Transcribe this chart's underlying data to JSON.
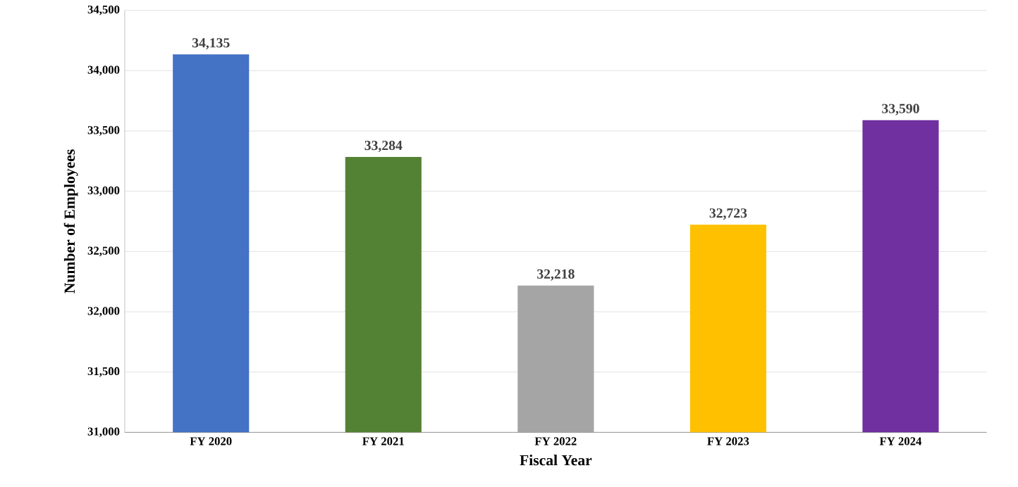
{
  "chart_data": {
    "type": "bar",
    "xlabel": "Fiscal Year",
    "ylabel": "Number of Employees",
    "categories": [
      "FY 2020",
      "FY 2021",
      "FY 2022",
      "FY 2023",
      "FY 2024"
    ],
    "values": [
      34135,
      33284,
      32218,
      32723,
      33590
    ],
    "colors": [
      "#4472c4",
      "#548235",
      "#a5a5a5",
      "#ffc000",
      "#7030a0"
    ],
    "value_labels": [
      "34,135",
      "33,284",
      "32,218",
      "32,723",
      "33,590"
    ],
    "ylim": [
      31000,
      34500
    ],
    "yticks": [
      {
        "value": 31000,
        "label": "31,000"
      },
      {
        "value": 31500,
        "label": "31,500"
      },
      {
        "value": 32000,
        "label": "32,000"
      },
      {
        "value": 32500,
        "label": "32,500"
      },
      {
        "value": 33000,
        "label": "33,000"
      },
      {
        "value": 33500,
        "label": "33,500"
      },
      {
        "value": 34000,
        "label": "34,000"
      },
      {
        "value": 34500,
        "label": "34,500"
      }
    ],
    "grid": "y"
  }
}
